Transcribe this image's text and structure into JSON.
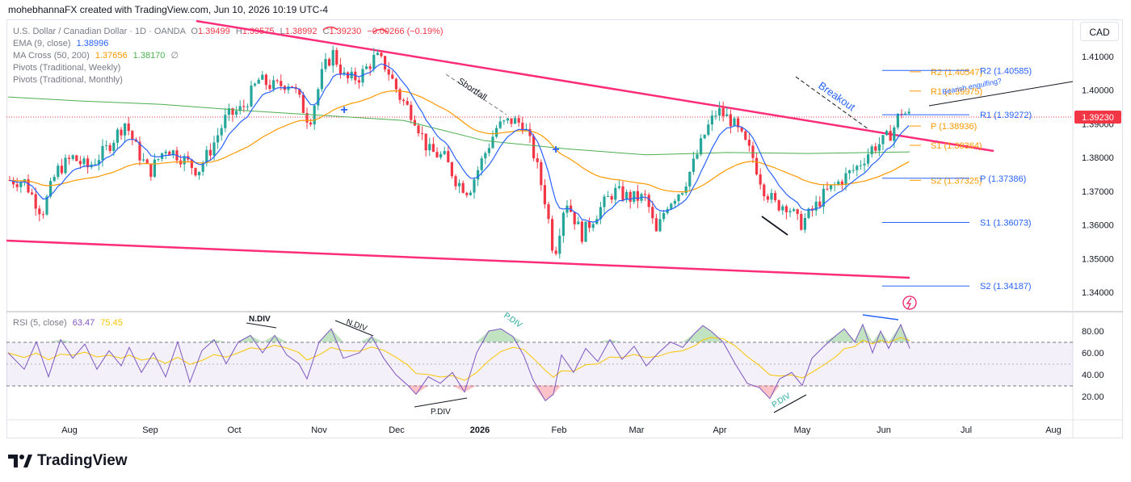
{
  "header": {
    "text": "mohebhannaFX created with TradingView.com, Jun 10, 2026 10:19 UTC-4"
  },
  "symbol": {
    "title": "U.S. Dollar / Canadian Dollar · 1D · OANDA",
    "o_label": "O",
    "o": "1.39499",
    "h_label": "H",
    "h": "1.39575",
    "l_label": "L",
    "l": "1.38992",
    "c_label": "C",
    "c": "1.39230",
    "change": "−0.00266 (−0.19%)"
  },
  "indicators": {
    "ema_label": "EMA (9, close)",
    "ema_value": "1.38996",
    "ma_label": "MA Cross (50, 200)",
    "ma50": "1.37656",
    "ma200": "1.38170",
    "ma_icon": "∅",
    "pivots_weekly": "Pivots (Traditional, Weekly)",
    "pivots_monthly": "Pivots (Traditional, Monthly)",
    "rsi_label": "RSI (5, close)",
    "rsi_value": "63.47",
    "rsi_ma": "75.45"
  },
  "currency_button": "CAD",
  "price_badge": "1.39230",
  "footer": {
    "brand": "TradingView"
  },
  "colors": {
    "up": "#26a69a",
    "down": "#f23645",
    "ema": "#2962ff",
    "ma50": "#ff9800",
    "ma200": "#4caf50",
    "trendline": "#ff2d78",
    "pivot_weekly": "#ff9800",
    "pivot_monthly": "#2962ff",
    "rsi": "#7e57c2",
    "rsi_ma": "#fdd835"
  },
  "chart_data": [
    {
      "type": "candlestick",
      "x_axis_labels": [
        "Aug",
        "Sep",
        "Oct",
        "Nov",
        "Dec",
        "2026",
        "Feb",
        "Mar",
        "Apr",
        "May",
        "Jun",
        "Jul",
        "Aug"
      ],
      "y_ticks": [
        "1.41000",
        "1.40000",
        "1.39000",
        "1.38000",
        "1.37000",
        "1.36000",
        "1.35000",
        "1.34000"
      ],
      "ylim": [
        1.3365,
        1.416
      ],
      "last_close": 1.3923,
      "series": [
        {
          "name": "EMA (9, close)",
          "value": 1.38996
        },
        {
          "name": "MA Cross 50",
          "value": 1.37656
        },
        {
          "name": "MA Cross 200",
          "value": 1.3817
        }
      ],
      "pivot_levels": [
        {
          "label": "R2 (1.40547)",
          "value": 1.40547,
          "set": "weekly"
        },
        {
          "label": "R1 (1.39975)",
          "value": 1.39975,
          "set": "weekly"
        },
        {
          "label": "P (1.38936)",
          "value": 1.38936,
          "set": "weekly"
        },
        {
          "label": "S1 (1.38364)",
          "value": 1.38364,
          "set": "weekly"
        },
        {
          "label": "S2 (1.37325)",
          "value": 1.37325,
          "set": "weekly"
        },
        {
          "label": "R2 (1.40585)",
          "value": 1.40585,
          "set": "monthly"
        },
        {
          "label": "R1 (1.39272)",
          "value": 1.39272,
          "set": "monthly"
        },
        {
          "label": "P (1.37386)",
          "value": 1.37386,
          "set": "monthly"
        },
        {
          "label": "S1 (1.36073)",
          "value": 1.36073,
          "set": "monthly"
        },
        {
          "label": "S2 (1.34187)",
          "value": 1.34187,
          "set": "monthly"
        }
      ],
      "annotations": [
        "Shortfall",
        "Breakout",
        "Bearish engulfing?"
      ]
    },
    {
      "type": "line",
      "title": "RSI (5, close)",
      "y_ticks": [
        "80.00",
        "60.00",
        "40.00",
        "20.00"
      ],
      "ylim": [
        5,
        105
      ],
      "band": [
        30,
        70
      ],
      "last_value": 63.47,
      "ma_value": 75.45,
      "annotations": [
        "N.DIV",
        "N.DIV",
        "P.DIV",
        "P.DIV",
        "P.DIV",
        "P.DIV"
      ]
    }
  ]
}
